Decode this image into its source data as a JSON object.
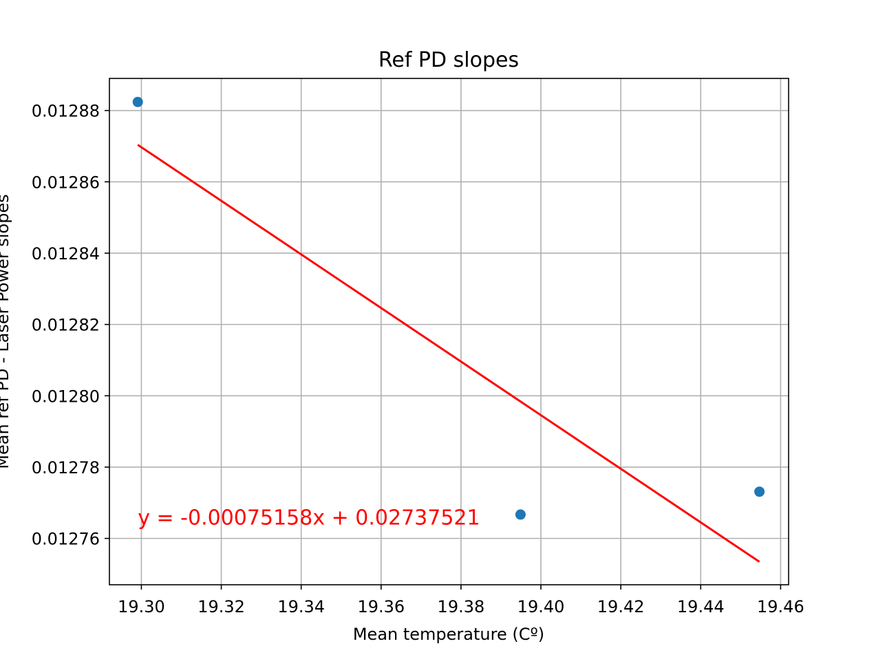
{
  "chart_data": {
    "type": "scatter",
    "title": "Ref PD slopes",
    "xlabel": "Mean temperature (Cº)",
    "ylabel": "Mean ref PD - Laser Power slopes",
    "xlim": [
      19.292,
      19.462
    ],
    "ylim": [
      0.012747,
      0.012889
    ],
    "x_ticks": [
      "19.30",
      "19.32",
      "19.34",
      "19.36",
      "19.38",
      "19.40",
      "19.42",
      "19.44",
      "19.46"
    ],
    "y_ticks": [
      "0.01276",
      "0.01278",
      "0.01280",
      "0.01282",
      "0.01284",
      "0.01286",
      "0.01288"
    ],
    "grid": true,
    "series": [
      {
        "kind": "points",
        "color": "#1f77b4",
        "points": [
          {
            "x": 19.2991,
            "y": 0.0128824
          },
          {
            "x": 19.3949,
            "y": 0.0127667
          },
          {
            "x": 19.4547,
            "y": 0.0127731
          }
        ]
      },
      {
        "kind": "fit-line",
        "color": "#ff0000",
        "slope": -0.00075158,
        "intercept": 0.02737521,
        "x_range": [
          19.2991,
          19.4547
        ]
      }
    ],
    "annotation": {
      "text": "y = -0.00075158x + 0.02737521",
      "x": 19.2991,
      "y": 0.012766,
      "color": "#ff0000"
    }
  }
}
